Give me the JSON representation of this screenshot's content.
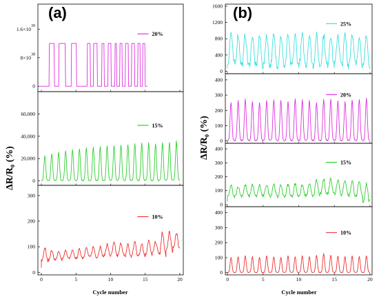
{
  "figure": {
    "panel_a_label": "(a)",
    "panel_b_label": "(b)",
    "ylabel_a": "ΔR/R₀ (%)",
    "ylabel_b": "ΔR/R₀ (%)",
    "xlabel_a": "Cycle number",
    "xlabel_b": "Cycle number"
  },
  "chart_data": [
    {
      "id": "a-top",
      "type": "line",
      "legend": "20%",
      "color": "#dd22dd",
      "xlim": [
        -0.5,
        20.5
      ],
      "ylim": [
        -1.5e+38,
        2.3e+39
      ],
      "ytick_values": [
        0,
        8e+38,
        1.6e+39
      ],
      "ytick_labels": [
        {
          "base": "0",
          "exp": ""
        },
        {
          "base": "8×10",
          "exp": "38"
        },
        {
          "base": "1.6×10",
          "exp": "39"
        }
      ],
      "pulse_height": 1.2e+39,
      "pulses": [
        [
          1.1,
          1.9
        ],
        [
          2.5,
          3.5
        ],
        [
          4.3,
          5.1
        ],
        [
          6.6,
          7.1
        ],
        [
          7.5,
          8.1
        ],
        [
          8.7,
          9.1
        ],
        [
          9.6,
          10.1
        ],
        [
          10.6,
          10.9
        ],
        [
          11.3,
          11.7
        ],
        [
          12.1,
          12.6
        ],
        [
          13.0,
          13.5
        ],
        [
          13.9,
          14.3
        ],
        [
          14.6,
          15.0
        ]
      ],
      "x_end": 15.3
    },
    {
      "id": "a-mid",
      "type": "line",
      "legend": "15%",
      "color": "#22cc22",
      "xlim": [
        -0.5,
        20.5
      ],
      "ylim": [
        -4000,
        80000
      ],
      "ytick_values": [
        0,
        20000,
        40000,
        60000
      ],
      "ytick_labels": [
        "0",
        "20,000",
        "40,000",
        "60,000"
      ],
      "peak_x": [
        0.5,
        1.5,
        2.5,
        3.5,
        4.5,
        5.5,
        6.5,
        7.5,
        8.5,
        9.5,
        10.5,
        11.5,
        12.5,
        13.5,
        14.5,
        15.5,
        16.5,
        17.5,
        18.5,
        19.5
      ],
      "peak_y": [
        22000,
        24000,
        25500,
        26500,
        27500,
        28500,
        29000,
        29500,
        30000,
        30500,
        31000,
        31500,
        32000,
        32500,
        33000,
        33500,
        33000,
        33500,
        34000,
        35000
      ]
    },
    {
      "id": "a-bot",
      "type": "line",
      "legend": "10%",
      "color": "#ee2222",
      "xlim": [
        -0.5,
        20.5
      ],
      "ylim": [
        -10,
        340
      ],
      "ytick_values": [
        0,
        100,
        200,
        300
      ],
      "ytick_labels": [
        "0",
        "100",
        "200",
        "300"
      ],
      "xtick_values": [
        0,
        5,
        10,
        15,
        20
      ],
      "xtick_labels": [
        "0",
        "5",
        "10",
        "15",
        "20"
      ],
      "peak_x": [
        0.5,
        1.5,
        2.5,
        3.5,
        4.5,
        5.5,
        6.5,
        7.5,
        8.5,
        9.5,
        10.5,
        11.5,
        12.5,
        13.5,
        14.5,
        15.5,
        16.5,
        17.5,
        18.5,
        19.5
      ],
      "peak_y": [
        95,
        85,
        80,
        85,
        85,
        90,
        95,
        100,
        100,
        110,
        115,
        115,
        110,
        120,
        115,
        125,
        120,
        155,
        160,
        155
      ],
      "valley_y": [
        45,
        50,
        50,
        55,
        55,
        55,
        60,
        60,
        60,
        65,
        65,
        65,
        60,
        65,
        65,
        70,
        75,
        70,
        80,
        95
      ]
    },
    {
      "id": "b-1",
      "type": "line",
      "legend": "25%",
      "color": "#33dddd",
      "xlim": [
        -0.3,
        20.3
      ],
      "ylim": [
        -60,
        1650
      ],
      "ytick_values": [
        0,
        400,
        800,
        1200,
        1600
      ],
      "ytick_labels": [
        "0",
        "400",
        "800",
        "1200",
        "1600"
      ],
      "peak_x": [
        0.5,
        1.5,
        2.5,
        3.5,
        4.5,
        5.5,
        6.5,
        7.5,
        8.5,
        9.5,
        10.5,
        11.5,
        12.5,
        13.5,
        14.5,
        15.5,
        16.5,
        17.5,
        18.5,
        19.5
      ],
      "peak_y": [
        950,
        900,
        900,
        880,
        880,
        900,
        890,
        880,
        900,
        880,
        890,
        900,
        880,
        890,
        900,
        920,
        890,
        950,
        900,
        920
      ],
      "valley_y": [
        200,
        180,
        150,
        140,
        130,
        150,
        160,
        140,
        130,
        150,
        170,
        160,
        140,
        150,
        160,
        170,
        150,
        200,
        160,
        60
      ]
    },
    {
      "id": "b-2",
      "type": "line",
      "legend": "20%",
      "color": "#dd22dd",
      "xlim": [
        -0.3,
        20.3
      ],
      "ylim": [
        -15,
        440
      ],
      "ytick_values": [
        0,
        100,
        200,
        300,
        400
      ],
      "ytick_labels": [
        "0",
        "100",
        "200",
        "300",
        "400"
      ],
      "peak_x": [
        0.5,
        1.5,
        2.5,
        3.5,
        4.5,
        5.5,
        6.5,
        7.5,
        8.5,
        9.5,
        10.5,
        11.5,
        12.5,
        13.5,
        14.5,
        15.5,
        16.5,
        17.5,
        18.5,
        19.5
      ],
      "peak_y": [
        250,
        260,
        270,
        255,
        250,
        260,
        265,
        260,
        255,
        270,
        265,
        260,
        250,
        265,
        270,
        260,
        255,
        265,
        270,
        275
      ]
    },
    {
      "id": "b-3",
      "type": "line",
      "legend": "15%",
      "color": "#22cc22",
      "xlim": [
        -0.3,
        20.3
      ],
      "ylim": [
        -15,
        440
      ],
      "ytick_values": [
        0,
        100,
        200,
        300,
        400
      ],
      "ytick_labels": [
        "0",
        "100",
        "200",
        "300",
        "400"
      ],
      "peak_x": [
        0.5,
        1.5,
        2.5,
        3.5,
        4.5,
        5.5,
        6.5,
        7.5,
        8.5,
        9.5,
        10.5,
        11.5,
        12.5,
        13.5,
        14.5,
        15.5,
        16.5,
        17.5,
        18.5,
        19.5
      ],
      "peak_y": [
        140,
        130,
        140,
        145,
        140,
        145,
        150,
        140,
        145,
        150,
        140,
        150,
        170,
        180,
        190,
        185,
        180,
        170,
        160,
        150
      ],
      "valley_y": [
        55,
        60,
        65,
        60,
        60,
        65,
        60,
        55,
        60,
        60,
        65,
        60,
        70,
        75,
        80,
        75,
        70,
        65,
        60,
        20
      ]
    },
    {
      "id": "b-4",
      "type": "line",
      "legend": "10%",
      "color": "#ee2222",
      "xlim": [
        -0.3,
        20.3
      ],
      "ylim": [
        -15,
        440
      ],
      "ytick_values": [
        0,
        100,
        200,
        300,
        400
      ],
      "ytick_labels": [
        "0",
        "100",
        "200",
        "300",
        "400"
      ],
      "xtick_values": [
        0,
        5,
        10,
        15,
        20
      ],
      "xtick_labels": [
        "0",
        "5",
        "10",
        "15",
        "20"
      ],
      "peak_x": [
        0.5,
        1.5,
        2.5,
        3.5,
        4.5,
        5.5,
        6.5,
        7.5,
        8.5,
        9.5,
        10.5,
        11.5,
        12.5,
        13.5,
        14.5,
        15.5,
        16.5,
        17.5,
        18.5,
        19.5
      ],
      "peak_y": [
        100,
        105,
        110,
        105,
        100,
        110,
        105,
        100,
        110,
        105,
        110,
        105,
        115,
        125,
        115,
        110,
        105,
        110,
        105,
        110
      ]
    }
  ]
}
